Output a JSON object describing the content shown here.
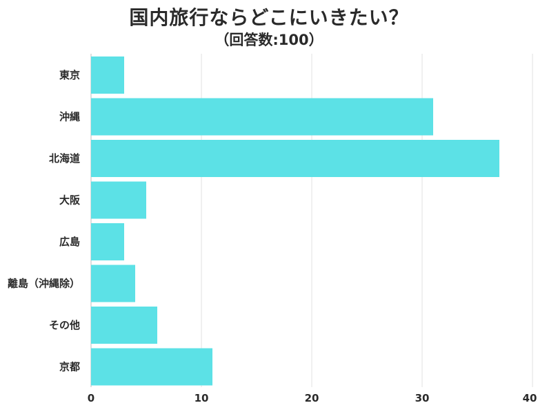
{
  "chart_data": {
    "type": "bar",
    "orientation": "horizontal",
    "title": "国内旅行ならどこにいきたい？",
    "subtitle": "（回答数:100）",
    "categories": [
      "東京",
      "沖縄",
      "北海道",
      "大阪",
      "広島",
      "離島（沖縄除）",
      "その他",
      "京都"
    ],
    "values": [
      3,
      31,
      37,
      5,
      3,
      4,
      6,
      11
    ],
    "xlim": [
      0,
      40
    ],
    "ticks": [
      "0",
      "10",
      "20",
      "30",
      "40"
    ],
    "grid": true,
    "bar_color": "#5ce1e6",
    "xlabel": "",
    "ylabel": ""
  }
}
